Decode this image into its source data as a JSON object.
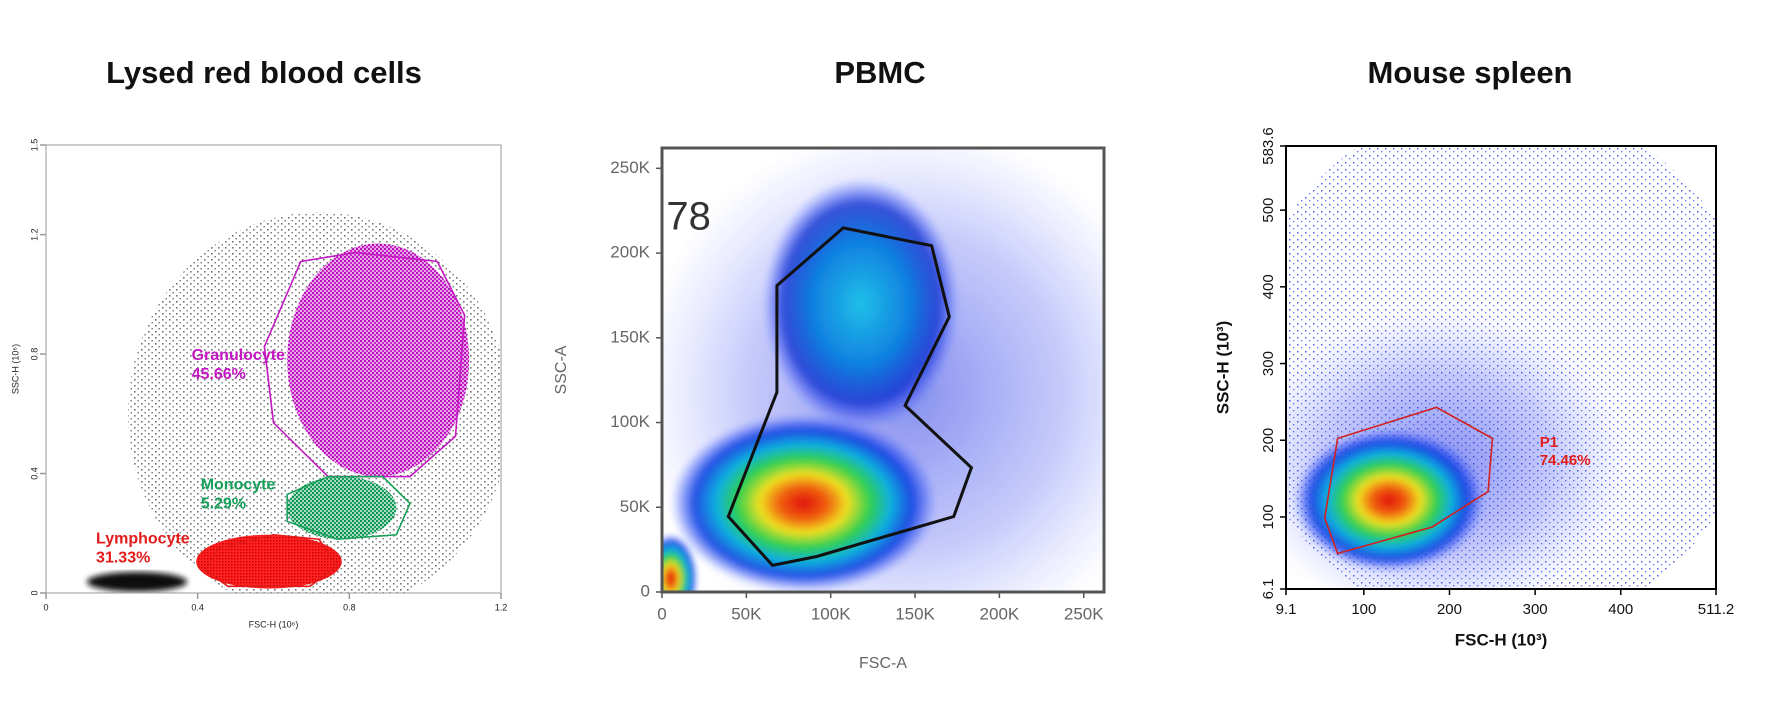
{
  "chart_data": [
    {
      "type": "scatter",
      "title": "Lysed red blood cells",
      "x_label": "FSC-H (10⁶)",
      "y_label": "SSC-H (10⁶)",
      "xlim": [
        0,
        1.2
      ],
      "ylim": [
        0,
        1.5
      ],
      "xticks": [
        0,
        0.4,
        0.8,
        1.2
      ],
      "yticks": [
        0,
        0.4,
        0.8,
        1.2,
        1.5
      ],
      "annotations": [
        {
          "text": "Granulocyte",
          "value": 45.66,
          "value_label": "45.66%",
          "color": "#c318c3"
        },
        {
          "text": "Monocyte",
          "value": 5.29,
          "value_label": "5.29%",
          "color": "#16a05a"
        },
        {
          "text": "Lymphocyte",
          "value": 31.33,
          "value_label": "31.33%",
          "color": "#e31b1b"
        }
      ]
    },
    {
      "type": "scatter",
      "title": "PBMC",
      "x_label": "FSC-A",
      "y_label": "SSC-A",
      "xlim": [
        0,
        262000
      ],
      "ylim": [
        0,
        262000
      ],
      "xticks": [
        {
          "value": 0,
          "label": "0"
        },
        {
          "value": 50000,
          "label": "50K"
        },
        {
          "value": 100000,
          "label": "100K"
        },
        {
          "value": 150000,
          "label": "150K"
        },
        {
          "value": 200000,
          "label": "200K"
        },
        {
          "value": 250000,
          "label": "250K"
        }
      ],
      "yticks": [
        {
          "value": 0,
          "label": "0"
        },
        {
          "value": 50000,
          "label": "50K"
        },
        {
          "value": 100000,
          "label": "100K"
        },
        {
          "value": 150000,
          "label": "150K"
        },
        {
          "value": 200000,
          "label": "200K"
        },
        {
          "value": 250000,
          "label": "250K"
        }
      ],
      "annotations": [
        {
          "text": "78"
        }
      ]
    },
    {
      "type": "scatter",
      "title": "Mouse spleen",
      "x_label": "FSC-H (10³)",
      "y_label": "SSC-H (10³)",
      "xlim": [
        9.1,
        511.2
      ],
      "ylim": [
        6.1,
        583.6
      ],
      "xticks": [
        9.1,
        100,
        200,
        300,
        400,
        511.2
      ],
      "yticks": [
        6.1,
        100,
        200,
        300,
        400,
        500,
        583.6
      ],
      "annotations": [
        {
          "text": "P1",
          "value": 74.46,
          "value_label": "74.46%",
          "color": "#e31b1b"
        }
      ]
    }
  ]
}
